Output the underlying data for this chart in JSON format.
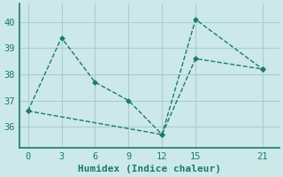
{
  "line1_x": [
    0,
    3,
    6,
    9,
    12,
    15,
    21
  ],
  "line1_y": [
    36.6,
    39.4,
    37.7,
    37.0,
    35.7,
    40.1,
    38.2
  ],
  "line2_x": [
    0,
    12,
    15,
    21
  ],
  "line2_y": [
    36.6,
    35.7,
    38.6,
    38.2
  ],
  "line_color": "#1a7a6e",
  "bg_color": "#cce8e8",
  "grid_color": "#aacece",
  "xlabel": "Humidex (Indice chaleur)",
  "xticks": [
    0,
    3,
    6,
    9,
    12,
    15,
    21
  ],
  "yticks": [
    36,
    37,
    38,
    39,
    40
  ],
  "xlim": [
    -0.8,
    22.5
  ],
  "ylim": [
    35.2,
    40.7
  ],
  "xlabel_fontsize": 8,
  "tick_fontsize": 7.5,
  "marker": "D",
  "marker_size": 2.5,
  "linewidth": 1.0,
  "linestyle": "--",
  "spine_color": "#1a7a6e",
  "spine_linewidth": 1.2
}
